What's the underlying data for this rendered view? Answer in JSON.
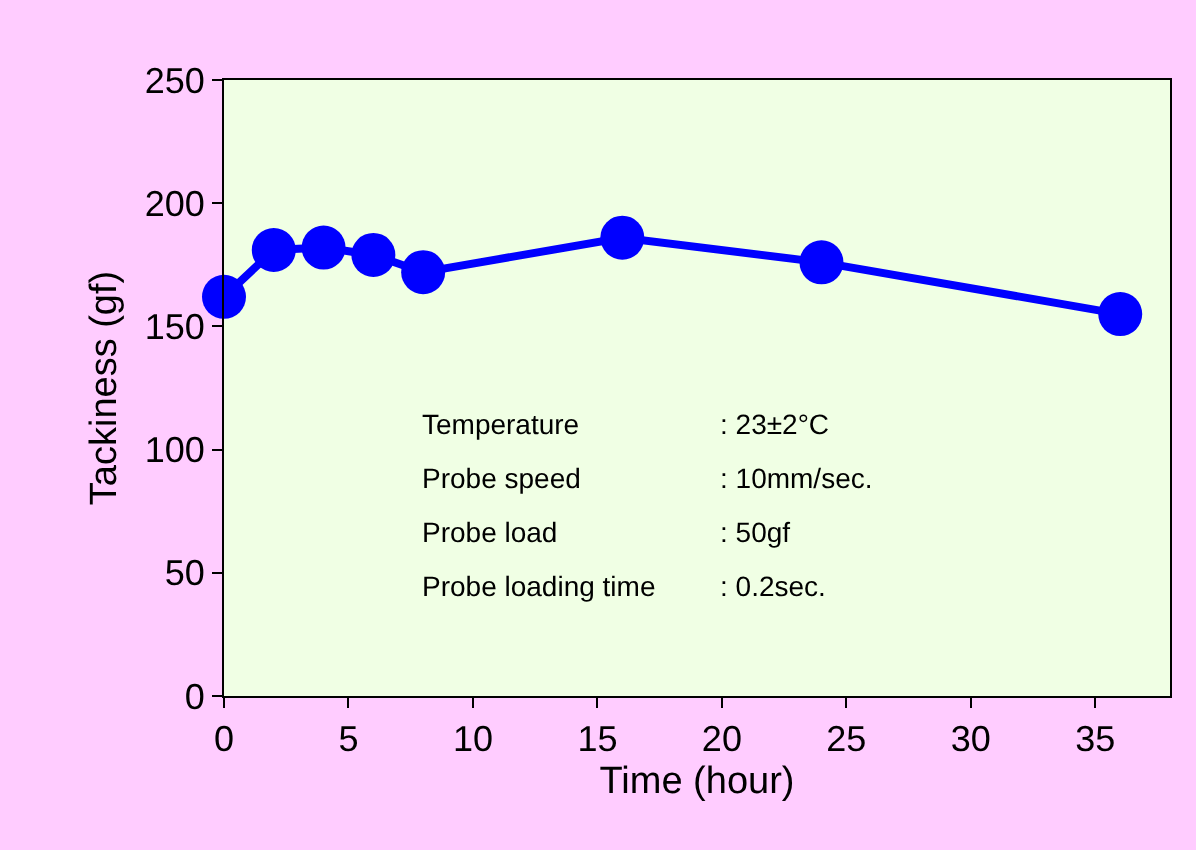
{
  "chart_data": {
    "type": "line",
    "xlabel": "Time (hour)",
    "ylabel": "Tackiness (gf)",
    "x": [
      0,
      2,
      4,
      6,
      8,
      16,
      24,
      36
    ],
    "series": [
      {
        "color": "#0000ff",
        "values": [
          162,
          181,
          182,
          179,
          172,
          186,
          176,
          155
        ]
      }
    ],
    "xlim": [
      0,
      38
    ],
    "xticks": [
      0,
      5,
      10,
      15,
      20,
      25,
      30,
      35
    ],
    "ylim": [
      0,
      250
    ],
    "yticks": [
      0,
      50,
      100,
      150,
      200,
      250
    ],
    "grid": false,
    "marker": "circle",
    "line_style": "solid",
    "annotations": [
      "Temperature",
      ": 23±2°C",
      "Probe speed",
      ": 10mm/sec.",
      "Probe load",
      ": 50gf",
      "Probe loading time",
      ": 0.2sec."
    ]
  }
}
